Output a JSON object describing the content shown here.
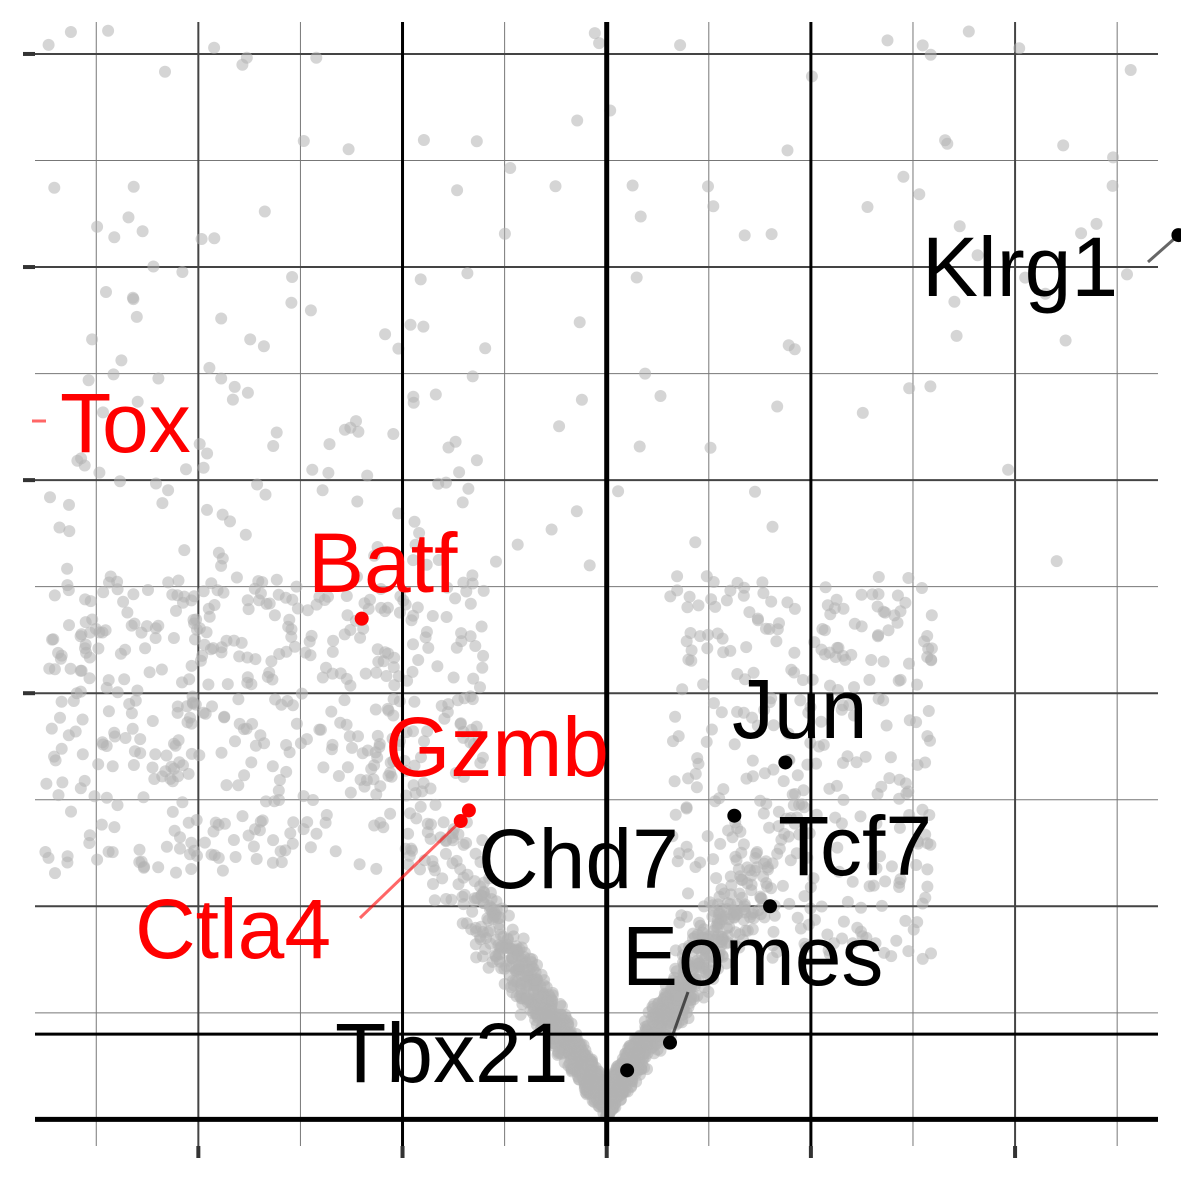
{
  "chart_data": {
    "type": "scatter",
    "title": "",
    "xlabel": "",
    "ylabel": "",
    "xlim": [
      -5.6,
      5.4
    ],
    "ylim": [
      -0.25,
      10.3
    ],
    "grid": true,
    "legend": "none",
    "colors": {
      "background_points": "#b3b3b3",
      "highlight_up": "#ff0000",
      "highlight_neutral": "#000000",
      "grid_major": "#444444",
      "grid_minor": "#777777",
      "threshold": "#000000"
    },
    "thresholds": {
      "vlines": [
        -2,
        0,
        2
      ],
      "hline": 0.8
    },
    "background_points": {
      "count": 2200,
      "marker": "circle"
    },
    "highlights": [
      {
        "gene": "Tox",
        "x": -6.2,
        "y": 6.6,
        "color": "#ff0000"
      },
      {
        "gene": "Batf",
        "x": -2.4,
        "y": 4.7,
        "color": "#ff0000"
      },
      {
        "gene": "Gzmb",
        "x": -1.35,
        "y": 2.9,
        "color": "#ff0000"
      },
      {
        "gene": "Ctla4",
        "x": -1.43,
        "y": 2.8,
        "color": "#ff0000"
      },
      {
        "gene": "Klrg1",
        "x": 5.6,
        "y": 8.3,
        "color": "#000000"
      },
      {
        "gene": "Jun",
        "x": 1.75,
        "y": 3.35,
        "color": "#000000"
      },
      {
        "gene": "Chd7",
        "x": 1.25,
        "y": 2.85,
        "color": "#000000"
      },
      {
        "gene": "Tcf7",
        "x": 1.6,
        "y": 2.0,
        "color": "#000000"
      },
      {
        "gene": "Eomes",
        "x": 0.62,
        "y": 0.72,
        "color": "#000000"
      },
      {
        "gene": "Tbx21",
        "x": 0.2,
        "y": 0.46,
        "color": "#000000"
      }
    ]
  }
}
